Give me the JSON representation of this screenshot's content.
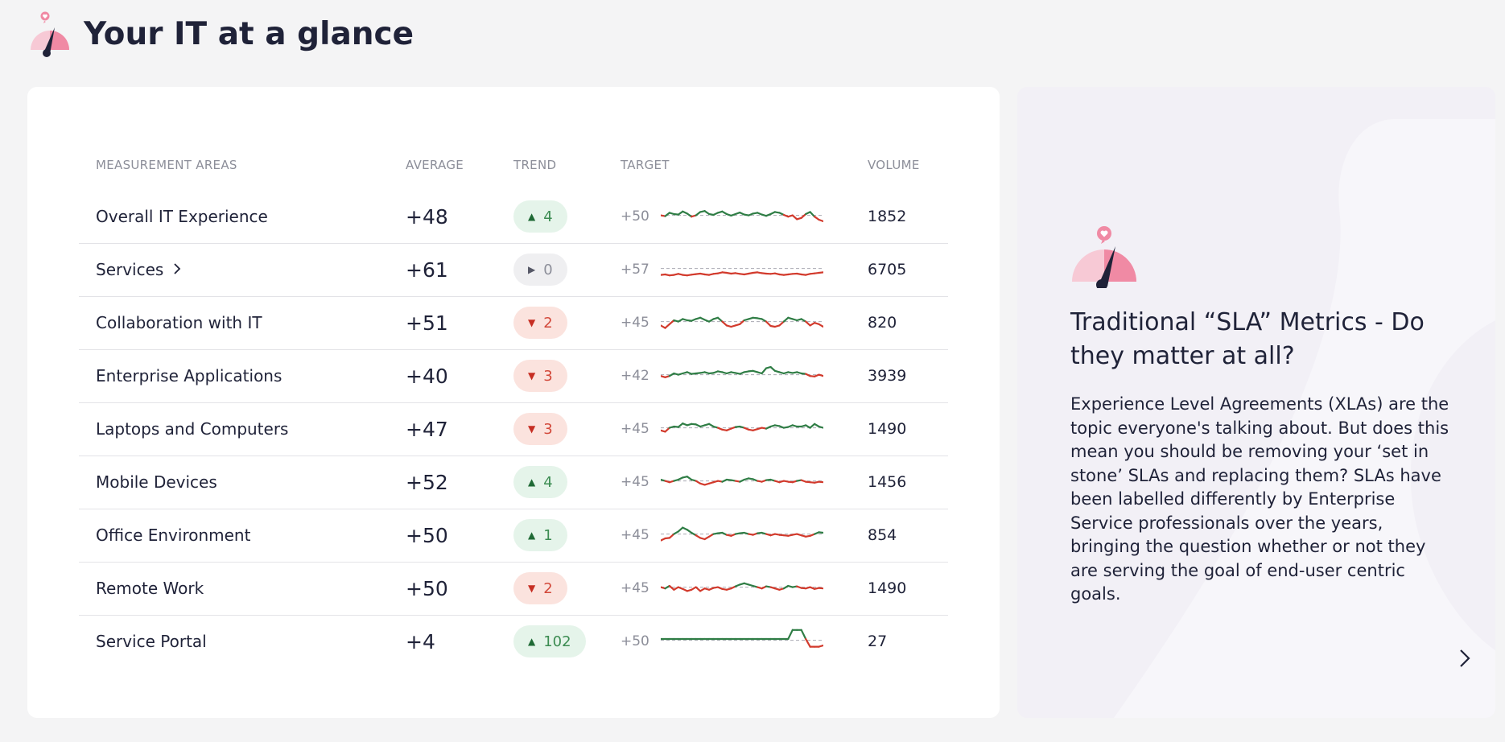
{
  "header": {
    "title": "Your IT at a glance",
    "logo_icon": "gauge-heart-icon"
  },
  "table": {
    "columns": {
      "area": "MEASUREMENT AREAS",
      "average": "AVERAGE",
      "trend": "TREND",
      "target": "TARGET",
      "volume": "VOLUME"
    },
    "rows": [
      {
        "name": "Overall IT Experience",
        "average": "+48",
        "trend_dir": "up",
        "trend": "4",
        "target": "+50",
        "volume": "1852"
      },
      {
        "name": "Services",
        "has_chevron": true,
        "average": "+61",
        "trend_dir": "flat",
        "trend": "0",
        "target": "+57",
        "volume": "6705"
      },
      {
        "name": "Collaboration with IT",
        "average": "+51",
        "trend_dir": "down",
        "trend": "2",
        "target": "+45",
        "volume": "820"
      },
      {
        "name": "Enterprise Applications",
        "average": "+40",
        "trend_dir": "down",
        "trend": "3",
        "target": "+42",
        "volume": "3939"
      },
      {
        "name": "Laptops and Computers",
        "average": "+47",
        "trend_dir": "down",
        "trend": "3",
        "target": "+45",
        "volume": "1490"
      },
      {
        "name": "Mobile Devices",
        "average": "+52",
        "trend_dir": "up",
        "trend": "4",
        "target": "+45",
        "volume": "1456"
      },
      {
        "name": "Office Environment",
        "average": "+50",
        "trend_dir": "up",
        "trend": "1",
        "target": "+45",
        "volume": "854"
      },
      {
        "name": "Remote Work",
        "average": "+50",
        "trend_dir": "down",
        "trend": "2",
        "target": "+45",
        "volume": "1490"
      },
      {
        "name": "Service Portal",
        "average": "+4",
        "trend_dir": "up",
        "trend": "102",
        "target": "+50",
        "volume": "27"
      }
    ]
  },
  "article": {
    "title": "Traditional “SLA” Metrics - Do they matter at all?",
    "body": "Experience Level Agreements (XLAs) are the topic everyone's talking about. But does this mean you should be removing your ‘set in stone’ SLAs and replacing them? SLAs have been labelled differently by Enterprise Service professionals over the years, bringing the question whether or not they are serving the goal of end-user centric goals.",
    "icon": "gauge-heart-icon",
    "next_icon": "chevron-right-icon"
  },
  "colors": {
    "positive": "#2f7d45",
    "negative": "#d23a2c",
    "target_line": "#a9aab3",
    "accent_pink": "#f08aa4"
  },
  "sparklines": [
    [
      0.45,
      0.42,
      0.55,
      0.5,
      0.48,
      0.6,
      0.52,
      0.4,
      0.45,
      0.58,
      0.62,
      0.5,
      0.47,
      0.55,
      0.6,
      0.5,
      0.44,
      0.5,
      0.56,
      0.48,
      0.45,
      0.52,
      0.55,
      0.48,
      0.43,
      0.5,
      0.58,
      0.55,
      0.47,
      0.4,
      0.45,
      0.3,
      0.35,
      0.5,
      0.58,
      0.4,
      0.28,
      0.22
    ],
    [
      0.2,
      0.22,
      0.18,
      0.2,
      0.24,
      0.2,
      0.18,
      0.21,
      0.23,
      0.25,
      0.22,
      0.2,
      0.24,
      0.26,
      0.3,
      0.28,
      0.25,
      0.27,
      0.24,
      0.22,
      0.25,
      0.28,
      0.3,
      0.27,
      0.25,
      0.24,
      0.26,
      0.22,
      0.2,
      0.22,
      0.24,
      0.25,
      0.22,
      0.2,
      0.24,
      0.26,
      0.28,
      0.3
    ],
    [
      0.3,
      0.2,
      0.35,
      0.5,
      0.45,
      0.55,
      0.5,
      0.48,
      0.55,
      0.6,
      0.52,
      0.45,
      0.55,
      0.6,
      0.45,
      0.3,
      0.25,
      0.3,
      0.35,
      0.5,
      0.55,
      0.6,
      0.58,
      0.55,
      0.45,
      0.28,
      0.25,
      0.3,
      0.45,
      0.6,
      0.55,
      0.5,
      0.55,
      0.45,
      0.3,
      0.4,
      0.35,
      0.25
    ],
    [
      0.4,
      0.35,
      0.4,
      0.5,
      0.45,
      0.5,
      0.55,
      0.48,
      0.5,
      0.52,
      0.55,
      0.5,
      0.52,
      0.58,
      0.55,
      0.5,
      0.55,
      0.52,
      0.48,
      0.55,
      0.58,
      0.6,
      0.55,
      0.5,
      0.7,
      0.75,
      0.6,
      0.55,
      0.5,
      0.55,
      0.52,
      0.55,
      0.5,
      0.48,
      0.4,
      0.38,
      0.45,
      0.4
    ],
    [
      0.35,
      0.3,
      0.45,
      0.5,
      0.48,
      0.62,
      0.55,
      0.6,
      0.58,
      0.5,
      0.55,
      0.6,
      0.5,
      0.45,
      0.38,
      0.35,
      0.42,
      0.48,
      0.5,
      0.45,
      0.38,
      0.35,
      0.4,
      0.45,
      0.42,
      0.5,
      0.55,
      0.52,
      0.45,
      0.48,
      0.55,
      0.5,
      0.5,
      0.55,
      0.45,
      0.6,
      0.5,
      0.45
    ],
    [
      0.5,
      0.45,
      0.4,
      0.45,
      0.5,
      0.58,
      0.62,
      0.5,
      0.45,
      0.35,
      0.3,
      0.35,
      0.4,
      0.45,
      0.42,
      0.5,
      0.48,
      0.45,
      0.42,
      0.5,
      0.55,
      0.52,
      0.45,
      0.42,
      0.48,
      0.5,
      0.45,
      0.4,
      0.45,
      0.42,
      0.4,
      0.45,
      0.48,
      0.42,
      0.4,
      0.38,
      0.42,
      0.4
    ],
    [
      0.2,
      0.28,
      0.3,
      0.45,
      0.55,
      0.7,
      0.62,
      0.5,
      0.4,
      0.3,
      0.25,
      0.35,
      0.45,
      0.48,
      0.5,
      0.42,
      0.38,
      0.45,
      0.48,
      0.5,
      0.45,
      0.42,
      0.48,
      0.5,
      0.45,
      0.4,
      0.45,
      0.42,
      0.4,
      0.38,
      0.42,
      0.45,
      0.4,
      0.35,
      0.38,
      0.45,
      0.52,
      0.5
    ],
    [
      0.45,
      0.4,
      0.5,
      0.35,
      0.45,
      0.38,
      0.3,
      0.35,
      0.45,
      0.3,
      0.4,
      0.35,
      0.42,
      0.45,
      0.38,
      0.35,
      0.4,
      0.48,
      0.55,
      0.6,
      0.55,
      0.5,
      0.45,
      0.4,
      0.48,
      0.45,
      0.4,
      0.35,
      0.4,
      0.5,
      0.45,
      0.48,
      0.42,
      0.4,
      0.45,
      0.38,
      0.42,
      0.4
    ],
    [
      0.5,
      0.5,
      0.5,
      0.5,
      0.5,
      0.5,
      0.5,
      0.5,
      0.5,
      0.5,
      0.5,
      0.5,
      0.5,
      0.5,
      0.5,
      0.5,
      0.5,
      0.5,
      0.5,
      0.5,
      0.5,
      0.5,
      0.5,
      0.5,
      0.5,
      0.5,
      0.5,
      0.5,
      0.5,
      0.5,
      0.85,
      0.85,
      0.85,
      0.5,
      0.2,
      0.2,
      0.2,
      0.25
    ]
  ]
}
